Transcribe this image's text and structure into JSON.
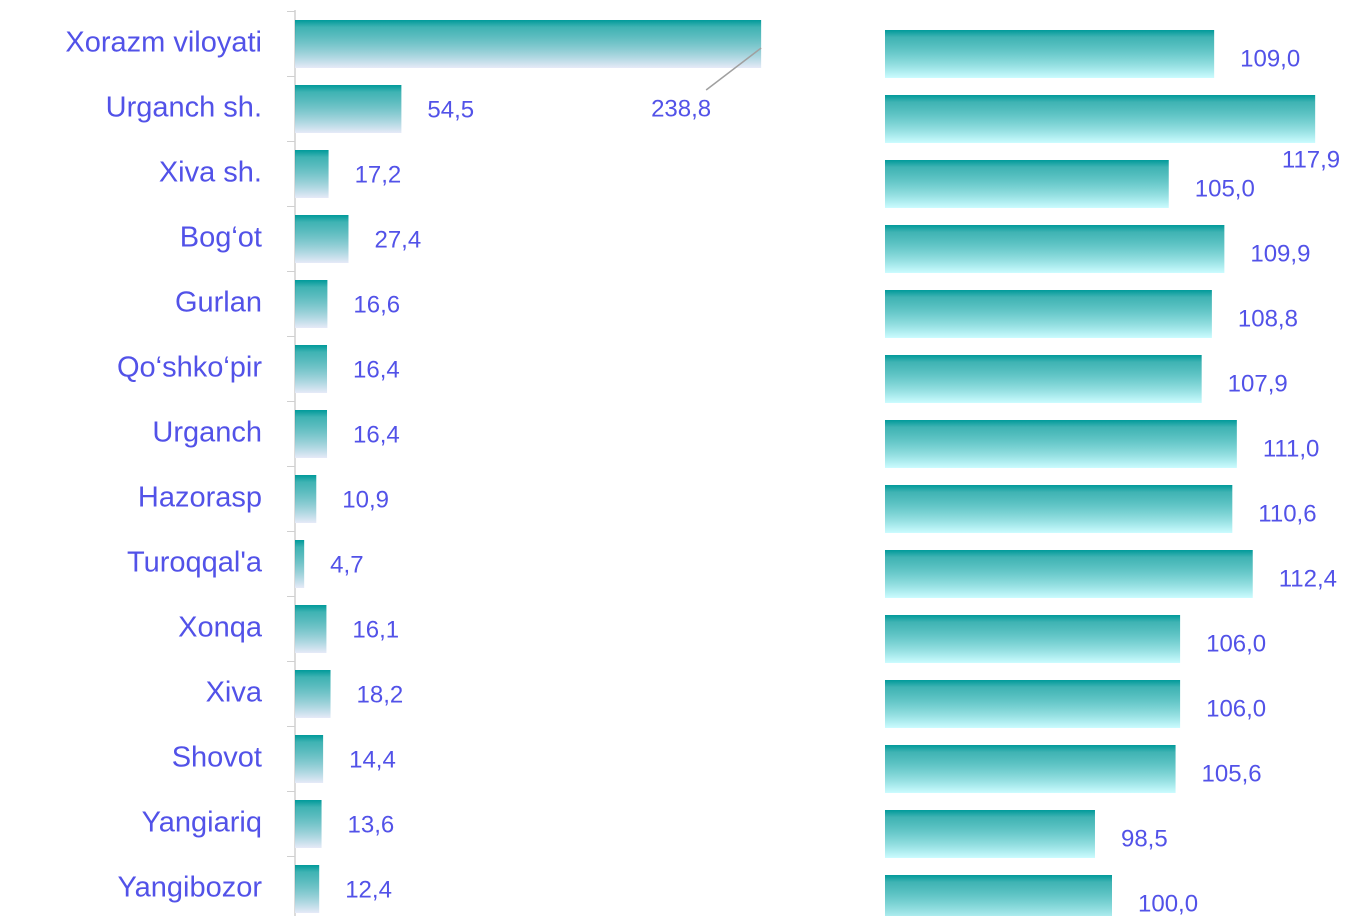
{
  "chart_data": [
    {
      "type": "bar",
      "orientation": "horizontal",
      "categories": [
        "Xorazm viloyati",
        "Urganch sh.",
        "Xiva sh.",
        "Bog‘ot",
        "Gurlan",
        "Qo‘shko‘pir",
        "Urganch ",
        "Hazorasp",
        "Turoqqal'a",
        "Xonqa ",
        "Xiva ",
        "Shovot",
        "Yangiariq",
        "Yangibozor"
      ],
      "values": [
        238.8,
        54.5,
        17.2,
        27.4,
        16.6,
        16.4,
        16.4,
        10.9,
        4.7,
        16.1,
        18.2,
        14.4,
        13.6,
        12.4
      ],
      "value_labels": [
        "238,8",
        "54,5",
        "17,2",
        "27,4",
        "16,6",
        "16,4",
        "16,4",
        "10,9",
        "4,7",
        "16,1",
        "18,2",
        "14,4",
        "13,6",
        "12,4"
      ],
      "color": "#009a9a",
      "xlim": [
        0,
        250
      ]
    },
    {
      "type": "bar",
      "orientation": "horizontal",
      "values": [
        109.0,
        117.9,
        105.0,
        109.9,
        108.8,
        107.9,
        111.0,
        110.6,
        112.4,
        106.0,
        106.0,
        105.6,
        98.5,
        100.0
      ],
      "value_labels": [
        "109,0",
        "117,9",
        "105,0",
        "109,9",
        "108,8",
        "107,9",
        "111,0",
        "110,6",
        "112,4",
        "106,0",
        "106,0",
        "105,6",
        "98,5",
        "100,0"
      ],
      "color": "#009a9a",
      "xlim": [
        80,
        120
      ]
    }
  ]
}
